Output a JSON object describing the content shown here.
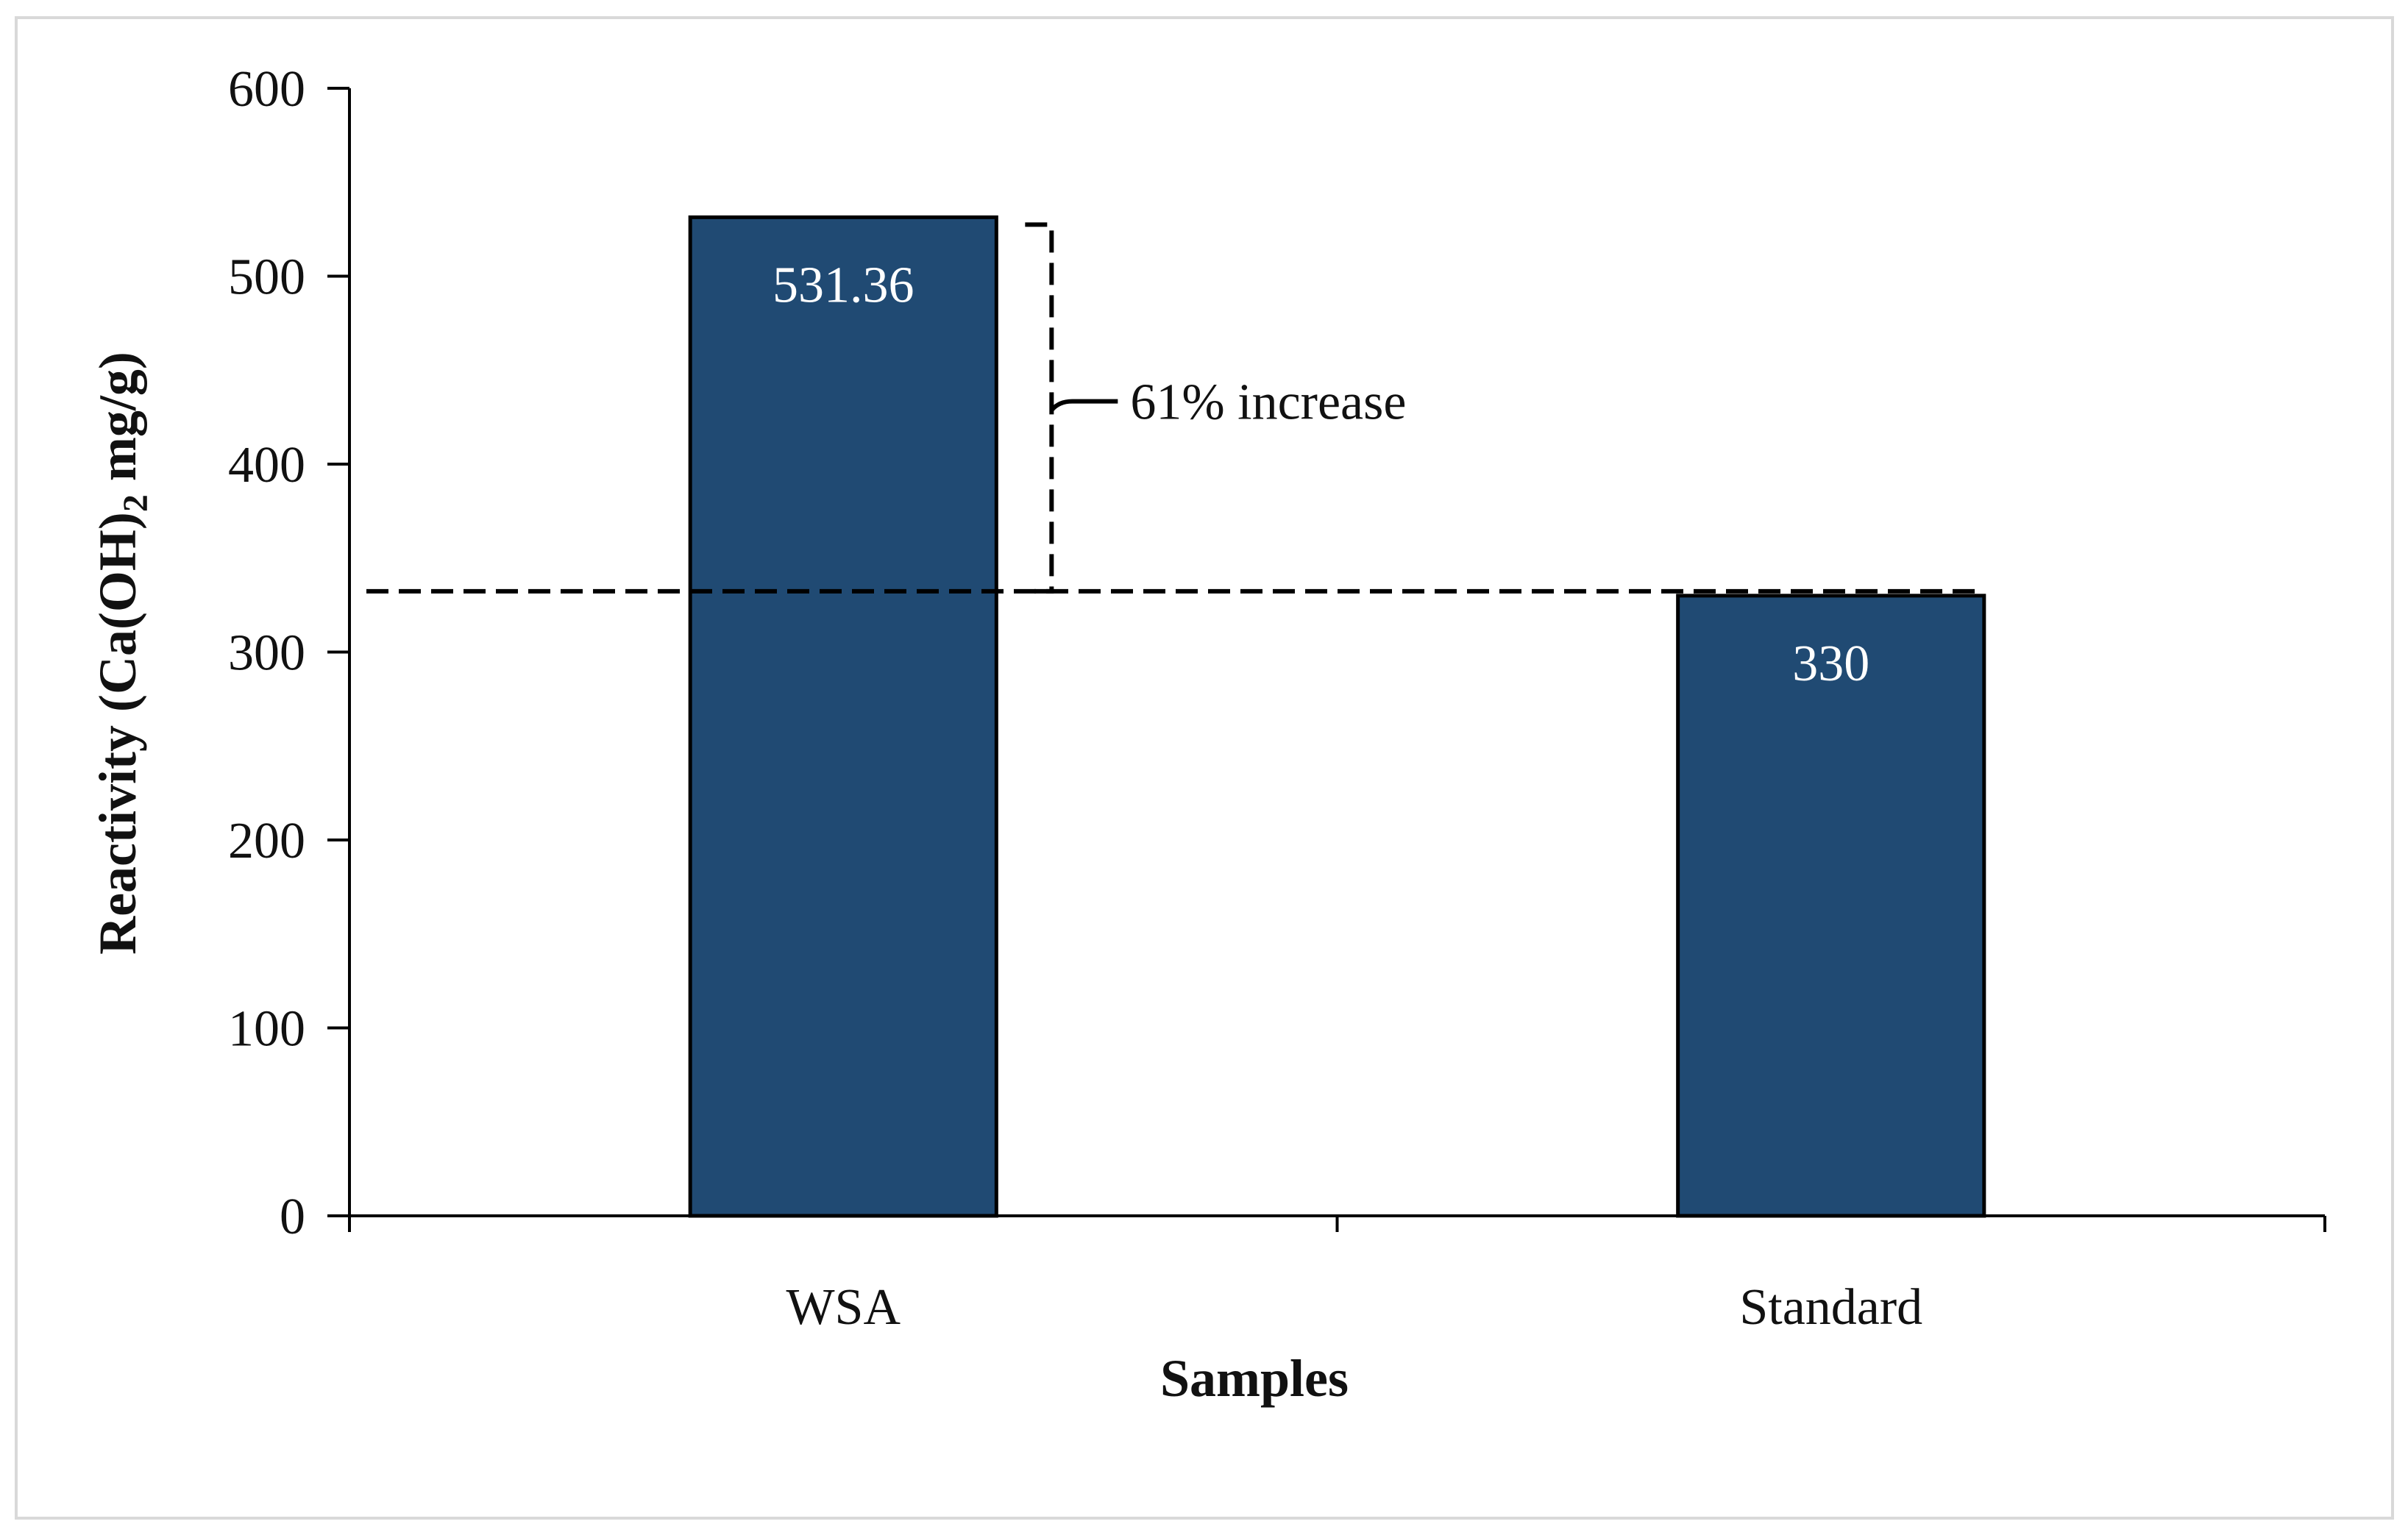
{
  "chart_data": {
    "type": "bar",
    "title": "",
    "categories": [
      "WSA",
      "Standard"
    ],
    "values": [
      531.36,
      330
    ],
    "data_labels": [
      "531.36",
      "330"
    ],
    "xlabel": "Samples",
    "ylabel": {
      "prefix": "Reactivity (Ca(OH)",
      "subscript": "2",
      "suffix": " mg/g)"
    },
    "ylim": [
      0,
      600
    ],
    "yticks": [
      0,
      100,
      200,
      300,
      400,
      500,
      600
    ],
    "grid": false,
    "legend": "none",
    "reference_line": {
      "value": 330,
      "style": "dashed"
    },
    "annotation": {
      "text": "61% increase",
      "from_value": 330,
      "to_value": 531.36
    },
    "colors": {
      "bar_fill": "#204a73",
      "bar_stroke": "#000000",
      "axis": "#000000",
      "label_text_on_bar": "#ffffff",
      "frame": "#d9d9d9"
    }
  }
}
